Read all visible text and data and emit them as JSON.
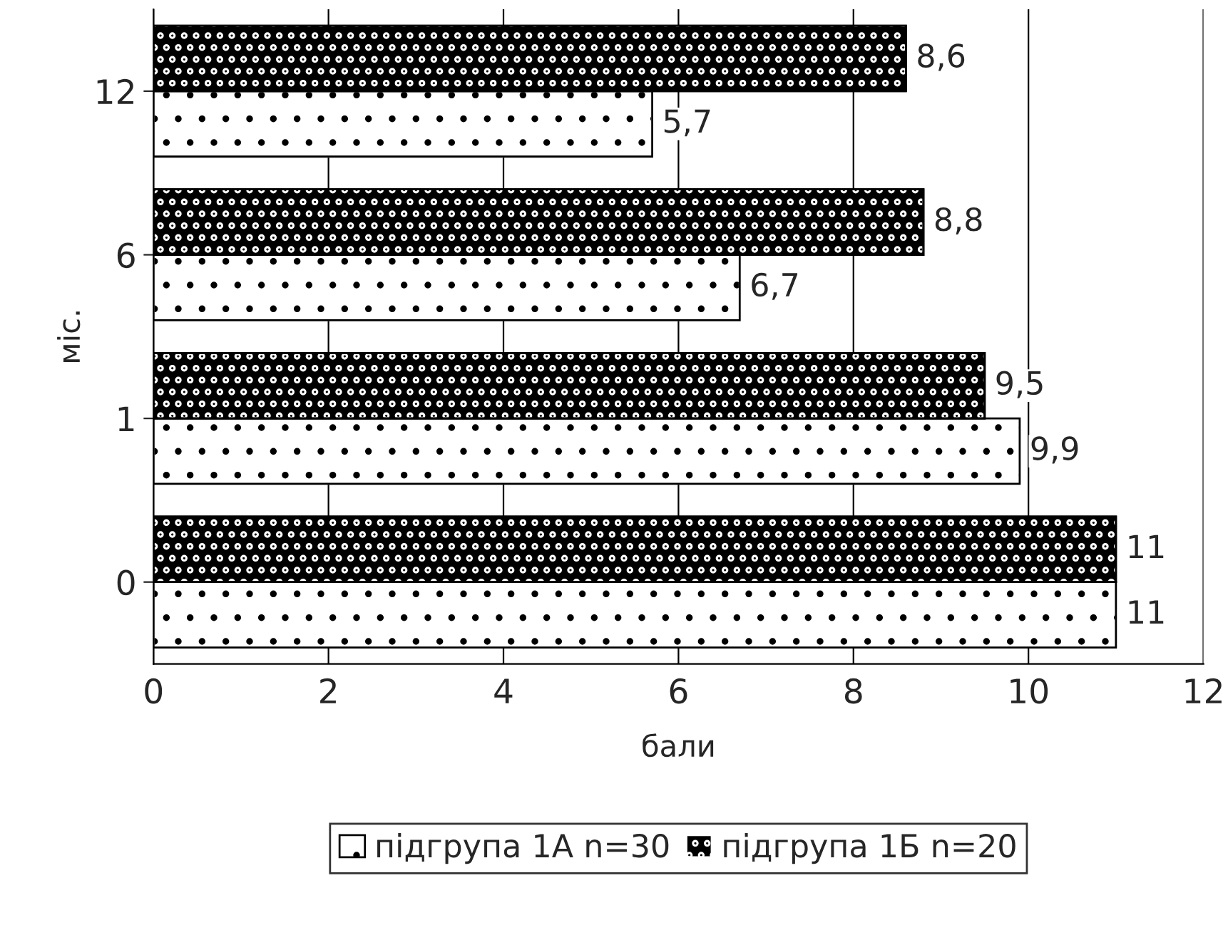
{
  "chart_data": {
    "type": "bar",
    "orientation": "horizontal",
    "ylabel": "міс.",
    "xlabel": "бали",
    "categories": [
      "12",
      "6",
      "1",
      "0"
    ],
    "series": [
      {
        "name": "підгрупа 1А n=30",
        "color": "#ffffff",
        "values": [
          5.7,
          6.7,
          9.9,
          11
        ],
        "value_labels": [
          "5,7",
          "6,7",
          "9,9",
          "11"
        ]
      },
      {
        "name": "підгрупа 1Б n=20",
        "color": "#000000",
        "values": [
          8.6,
          8.8,
          9.5,
          11
        ],
        "value_labels": [
          "8,6",
          "8,8",
          "9,5",
          "11"
        ]
      }
    ],
    "xlim": [
      0,
      12
    ],
    "xticks": [
      0,
      2,
      4,
      6,
      8,
      10,
      12
    ],
    "grid": "x",
    "legend": "bottom"
  }
}
